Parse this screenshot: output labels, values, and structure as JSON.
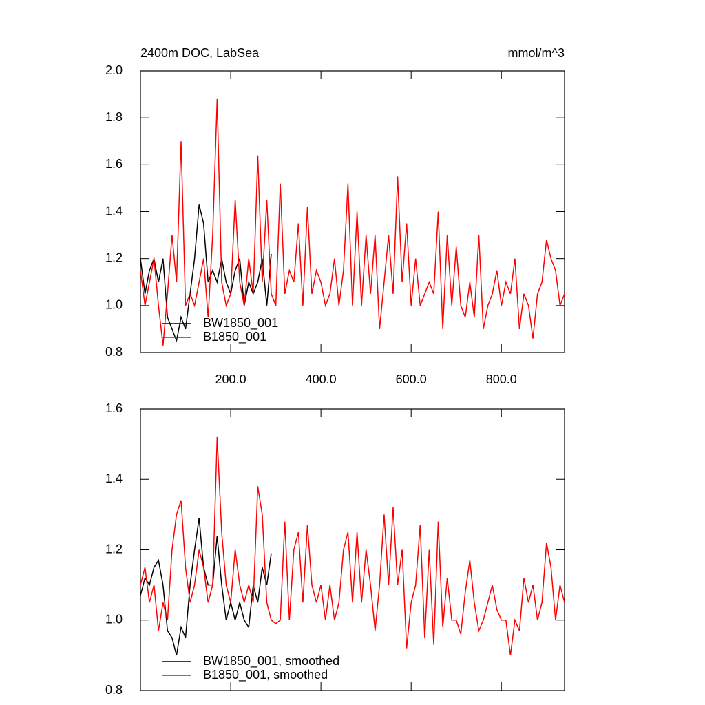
{
  "chart_data": [
    {
      "type": "line",
      "title": "2400m DOC, LabSea",
      "units": "mmol/m^3",
      "xlim": [
        0,
        940
      ],
      "ylim": [
        0.8,
        2.0
      ],
      "xticks": [
        {
          "value": 200,
          "label": "200.0"
        },
        {
          "value": 400,
          "label": "400.0"
        },
        {
          "value": 600,
          "label": "600.0"
        },
        {
          "value": 800,
          "label": "800.0"
        }
      ],
      "yticks": [
        0.8,
        {
          "value": 1,
          "label": "1.0"
        },
        1.2,
        1.4,
        1.6,
        1.8,
        {
          "value": 2,
          "label": "2.0"
        }
      ],
      "legend": "lower left",
      "series": [
        {
          "name": "BW1850_001",
          "color": "#000000",
          "x": [
            0,
            10,
            20,
            30,
            40,
            50,
            60,
            70,
            80,
            90,
            100,
            110,
            120,
            130,
            140,
            150,
            160,
            170,
            180,
            190,
            200,
            210,
            220,
            230,
            240,
            250,
            260,
            270,
            280,
            290
          ],
          "values": [
            1.2,
            1.05,
            1.15,
            1.2,
            1.1,
            1.2,
            0.95,
            0.9,
            0.85,
            0.95,
            0.9,
            1.05,
            1.2,
            1.43,
            1.35,
            1.1,
            1.15,
            1.1,
            1.2,
            1.1,
            1.05,
            1.15,
            1.2,
            1.0,
            1.1,
            1.05,
            1.1,
            1.2,
            1.0,
            1.22
          ]
        },
        {
          "name": "B1850_001",
          "color": "#ff0000",
          "x": [
            0,
            10,
            20,
            30,
            40,
            50,
            60,
            70,
            80,
            90,
            100,
            110,
            120,
            130,
            140,
            150,
            160,
            170,
            180,
            190,
            200,
            210,
            220,
            230,
            240,
            250,
            260,
            270,
            280,
            290,
            300,
            310,
            320,
            330,
            340,
            350,
            360,
            370,
            380,
            390,
            400,
            410,
            420,
            430,
            440,
            450,
            460,
            470,
            480,
            490,
            500,
            510,
            520,
            530,
            540,
            550,
            560,
            570,
            580,
            590,
            600,
            610,
            620,
            630,
            640,
            650,
            660,
            670,
            680,
            690,
            700,
            710,
            720,
            730,
            740,
            750,
            760,
            770,
            780,
            790,
            800,
            810,
            820,
            830,
            840,
            850,
            860,
            870,
            880,
            890,
            900,
            910,
            920,
            930,
            940
          ],
          "values": [
            1.15,
            1.0,
            1.1,
            1.2,
            1.0,
            0.83,
            1.05,
            1.3,
            1.1,
            1.7,
            1.0,
            1.05,
            1.0,
            1.1,
            1.2,
            0.95,
            1.3,
            1.88,
            1.1,
            1.0,
            1.05,
            1.45,
            1.1,
            1.0,
            1.2,
            1.05,
            1.64,
            1.1,
            1.45,
            1.05,
            1.0,
            1.52,
            1.05,
            1.15,
            1.1,
            1.35,
            1.0,
            1.42,
            1.05,
            1.15,
            1.1,
            1.0,
            1.05,
            1.2,
            1.0,
            1.15,
            1.52,
            1.0,
            1.4,
            1.0,
            1.3,
            1.05,
            1.3,
            0.9,
            1.1,
            1.3,
            1.05,
            1.55,
            1.1,
            1.35,
            1.0,
            1.2,
            1.0,
            1.05,
            1.1,
            1.05,
            1.4,
            0.9,
            1.3,
            1.0,
            1.25,
            1.0,
            0.95,
            1.1,
            0.95,
            1.3,
            0.9,
            1.0,
            1.05,
            1.15,
            1.0,
            1.1,
            1.05,
            1.2,
            0.9,
            1.05,
            1.0,
            0.86,
            1.05,
            1.1,
            1.28,
            1.2,
            1.15,
            1.0,
            1.05
          ]
        }
      ]
    },
    {
      "type": "line",
      "xlim": [
        0,
        940
      ],
      "ylim": [
        0.8,
        1.6
      ],
      "xticks": [
        200,
        400,
        600,
        800
      ],
      "yticks": [
        0.8,
        {
          "value": 1,
          "label": "1.0"
        },
        1.2,
        1.4,
        1.6
      ],
      "legend": "lower left",
      "series": [
        {
          "name": "BW1850_001, smoothed",
          "color": "#000000",
          "x": [
            0,
            10,
            20,
            30,
            40,
            50,
            60,
            70,
            80,
            90,
            100,
            110,
            120,
            130,
            140,
            150,
            160,
            170,
            180,
            190,
            200,
            210,
            220,
            230,
            240,
            250,
            260,
            270,
            280,
            290
          ],
          "values": [
            1.07,
            1.12,
            1.1,
            1.15,
            1.17,
            1.1,
            0.97,
            0.95,
            0.9,
            0.98,
            0.95,
            1.1,
            1.2,
            1.29,
            1.15,
            1.1,
            1.1,
            1.24,
            1.1,
            1.0,
            1.05,
            1.0,
            1.05,
            1.0,
            0.98,
            1.1,
            1.05,
            1.15,
            1.1,
            1.19
          ]
        },
        {
          "name": "B1850_001, smoothed",
          "color": "#ff0000",
          "x": [
            0,
            10,
            20,
            30,
            40,
            50,
            60,
            70,
            80,
            90,
            100,
            110,
            120,
            130,
            140,
            150,
            160,
            170,
            180,
            190,
            200,
            210,
            220,
            230,
            240,
            250,
            260,
            270,
            280,
            290,
            300,
            310,
            320,
            330,
            340,
            350,
            360,
            370,
            380,
            390,
            400,
            410,
            420,
            430,
            440,
            450,
            460,
            470,
            480,
            490,
            500,
            510,
            520,
            530,
            540,
            550,
            560,
            570,
            580,
            590,
            600,
            610,
            620,
            630,
            640,
            650,
            660,
            670,
            680,
            690,
            700,
            710,
            720,
            730,
            740,
            750,
            760,
            770,
            780,
            790,
            800,
            810,
            820,
            830,
            840,
            850,
            860,
            870,
            880,
            890,
            900,
            910,
            920,
            930,
            940
          ],
          "values": [
            1.1,
            1.15,
            1.05,
            1.1,
            0.97,
            1.05,
            1.0,
            1.2,
            1.3,
            1.34,
            1.15,
            1.05,
            1.1,
            1.2,
            1.15,
            1.05,
            1.1,
            1.52,
            1.25,
            1.1,
            1.05,
            1.2,
            1.1,
            1.05,
            1.1,
            1.05,
            1.38,
            1.3,
            1.05,
            1.0,
            0.99,
            1.0,
            1.28,
            1.0,
            1.2,
            1.25,
            1.05,
            1.27,
            1.1,
            1.05,
            1.1,
            1.0,
            1.1,
            1.0,
            1.05,
            1.2,
            1.25,
            1.05,
            1.25,
            1.05,
            1.2,
            1.1,
            0.97,
            1.1,
            1.3,
            1.1,
            1.32,
            1.1,
            1.2,
            0.92,
            1.05,
            1.1,
            1.27,
            0.95,
            1.2,
            0.93,
            1.28,
            0.98,
            1.12,
            1.0,
            1.0,
            0.96,
            1.08,
            1.17,
            1.05,
            0.97,
            1.0,
            1.05,
            1.1,
            1.03,
            1.0,
            1.0,
            0.9,
            1.0,
            0.97,
            1.12,
            1.05,
            1.1,
            1.0,
            1.05,
            1.22,
            1.15,
            1.0,
            1.1,
            1.05
          ]
        }
      ]
    }
  ]
}
